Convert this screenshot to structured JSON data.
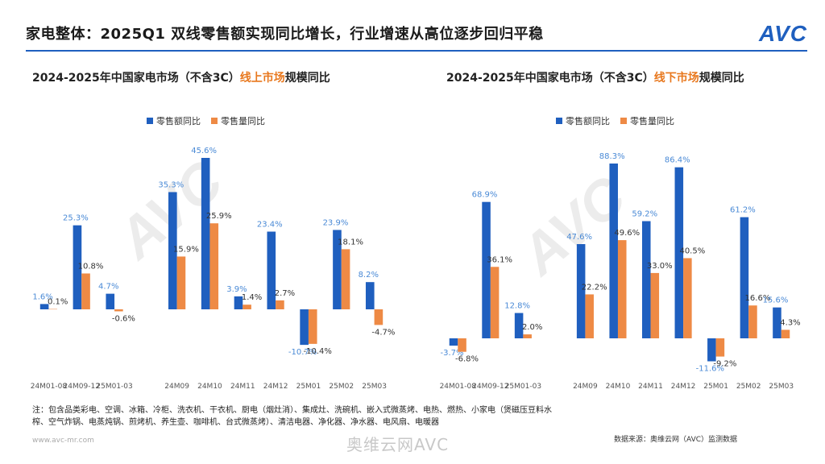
{
  "header": {
    "title": "家电整体：2025Q1 双线零售额实现同比增长，行业增速从高位逐步回归平稳",
    "logo": "AVC"
  },
  "left_title": {
    "prefix": "2024-2025年中国家电市场（不含3C）",
    "highlight": "线上市场",
    "suffix": "规模同比"
  },
  "right_title": {
    "prefix": "2024-2025年中国家电市场（不含3C）",
    "highlight": "线下市场",
    "suffix": "规模同比"
  },
  "colors": {
    "sales_value": "#1f5fbf",
    "sales_volume": "#ee8a45",
    "accent": "#1f5fbf",
    "label_blue": "#4a8ad6"
  },
  "note": "注：包含品类彩电、空调、冰箱、冷柜、洗衣机、干衣机、厨电（烟灶消）、集成灶、洗碗机、嵌入式微蒸烤、电热、燃热、小家电（煲磁压豆料水榨、空气炸锅、电蒸炖锅、煎烤机、养生壶、咖啡机、台式微蒸烤）、清洁电器、净化器、净水器、电风扇、电暖器",
  "footer": {
    "url": "www.avc-mr.com",
    "source": "数据来源：奥维云网（AVC）监测数据",
    "watermark": "奥维云网AVC"
  },
  "chart_data": [
    {
      "type": "bar",
      "title": "2024-2025年中国家电市场（不含3C）线上市场规模同比",
      "categories": [
        "24M01-08",
        "24M09-12",
        "25M01-03",
        "24M09",
        "24M10",
        "24M11",
        "24M12",
        "25M01",
        "25M02",
        "25M03"
      ],
      "series": [
        {
          "name": "零售额同比",
          "values": [
            1.6,
            25.3,
            4.7,
            35.3,
            45.6,
            3.9,
            23.4,
            -10.7,
            23.9,
            8.2
          ],
          "labels": [
            "1.6%",
            "25.3%",
            "4.7%",
            "35.3%",
            "45.6%",
            "3.9%",
            "23.4%",
            "-10.7%",
            "23.9%",
            "8.2%"
          ]
        },
        {
          "name": "零售量同比",
          "values": [
            0.1,
            10.8,
            -0.6,
            15.9,
            25.9,
            1.4,
            2.7,
            -10.4,
            18.1,
            -4.7
          ],
          "labels": [
            "0.1%",
            "10.8%",
            "-0.6%",
            "15.9%",
            "25.9%",
            "1.4%",
            "2.7%",
            "-10.4%",
            "18.1%",
            "-4.7%"
          ]
        }
      ],
      "tick_labels": [
        "24M01-08",
        "24M09-12",
        "25M01-03",
        "24M09",
        "24M10",
        "24M11",
        "24M12",
        "25M01",
        "25M02",
        "25M03"
      ],
      "ylim": [
        -15,
        50
      ],
      "legend": "top-center",
      "grid": false
    },
    {
      "type": "bar",
      "title": "2024-2025年中国家电市场（不含3C）线下市场规模同比",
      "categories": [
        "24M01-08",
        "24M09-12",
        "25M01-03",
        "24M09",
        "24M10",
        "24M11",
        "24M12",
        "25M01",
        "25M02",
        "25M03"
      ],
      "series": [
        {
          "name": "零售额同比",
          "values": [
            -3.7,
            68.9,
            12.8,
            47.6,
            88.3,
            59.2,
            86.4,
            -11.6,
            61.2,
            15.6
          ],
          "labels": [
            "-3.7%",
            "68.9%",
            "12.8%",
            "47.6%",
            "88.3%",
            "59.2%",
            "86.4%",
            "-11.6%",
            "61.2%",
            "15.6%"
          ]
        },
        {
          "name": "零售量同比",
          "values": [
            -6.8,
            36.1,
            2.0,
            22.2,
            49.6,
            33.0,
            40.5,
            -9.2,
            16.6,
            4.3
          ],
          "labels": [
            "-6.8%",
            "36.1%",
            "2.0%",
            "22.2%",
            "49.6%",
            "33.0%",
            "40.5%",
            "-9.2%",
            "16.6%",
            "4.3%"
          ]
        }
      ],
      "tick_labels": [
        "24M01-08",
        "24M09-12",
        "25M01-03",
        "24M09",
        "24M10",
        "24M11",
        "24M12",
        "25M01",
        "25M02",
        "25M03"
      ],
      "ylim": [
        -15,
        95
      ],
      "legend": "top-center",
      "grid": false
    }
  ]
}
